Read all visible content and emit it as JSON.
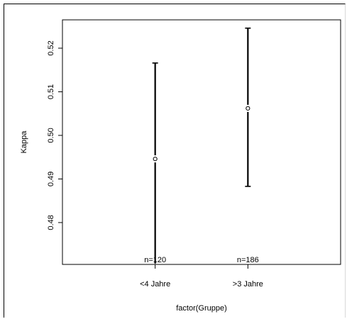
{
  "chart_data": {
    "type": "scatter",
    "subtype": "error-bar",
    "title": "",
    "xlabel": "factor(Gruppe)",
    "ylabel": "Kappa",
    "categories": [
      "<4 Jahre",
      ">3 Jahre"
    ],
    "points": [
      {
        "category": "<4 Jahre",
        "estimate": 0.4946,
        "lower": 0.4706,
        "upper": 0.5166,
        "annotation": "n=120"
      },
      {
        "category": ">3 Jahre",
        "estimate": 0.5062,
        "lower": 0.4883,
        "upper": 0.5246,
        "annotation": "n=186"
      }
    ],
    "yticks": [
      0.48,
      0.49,
      0.5,
      0.51,
      0.52
    ],
    "ytick_labels": [
      "0.48",
      "0.49",
      "0.50",
      "0.51",
      "0.52"
    ],
    "ylim": [
      0.4704,
      0.5265
    ],
    "grid": false,
    "legend": "none",
    "colors": {
      "line": "#000000",
      "background": "#ffffff"
    }
  }
}
